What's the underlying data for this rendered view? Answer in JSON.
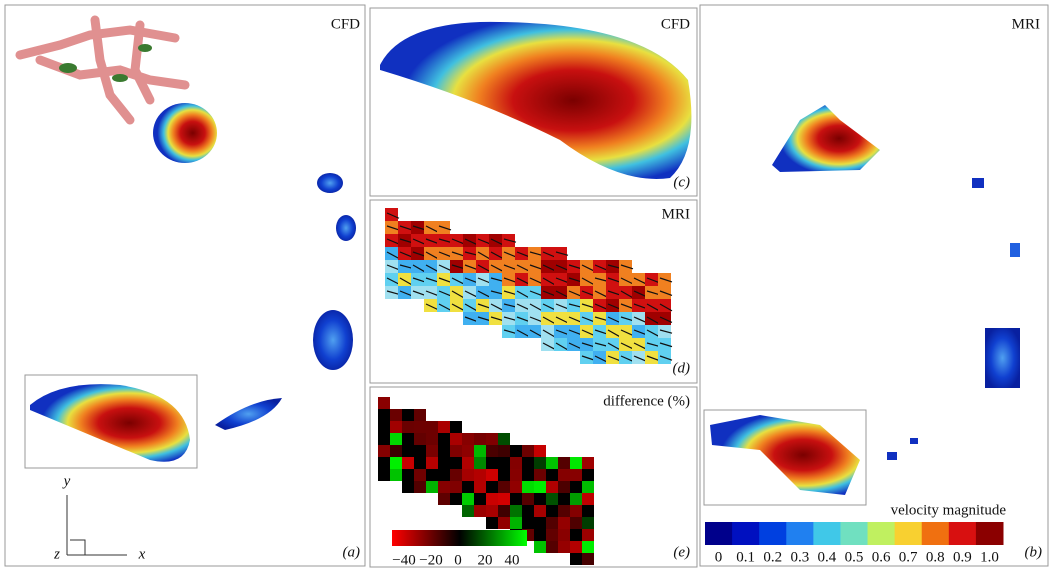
{
  "panels": {
    "a": {
      "title": "CFD",
      "label": "(a)",
      "axes": {
        "y": "y",
        "z": "z",
        "x": "x"
      }
    },
    "c": {
      "title": "CFD",
      "label": "(c)"
    },
    "d": {
      "title": "MRI",
      "label": "(d)"
    },
    "e": {
      "title": "difference (%)",
      "label": "(e)",
      "colorbar_ticks": [
        "−40",
        "−20",
        "0",
        "20",
        "40"
      ]
    },
    "b": {
      "title": "MRI",
      "label": "(b)",
      "colorbar_title": "velocity magnitude",
      "colorbar_ticks": [
        "0",
        "0.1",
        "0.2",
        "0.3",
        "0.4",
        "0.5",
        "0.6",
        "0.7",
        "0.8",
        "0.9",
        "1.0"
      ]
    }
  }
}
